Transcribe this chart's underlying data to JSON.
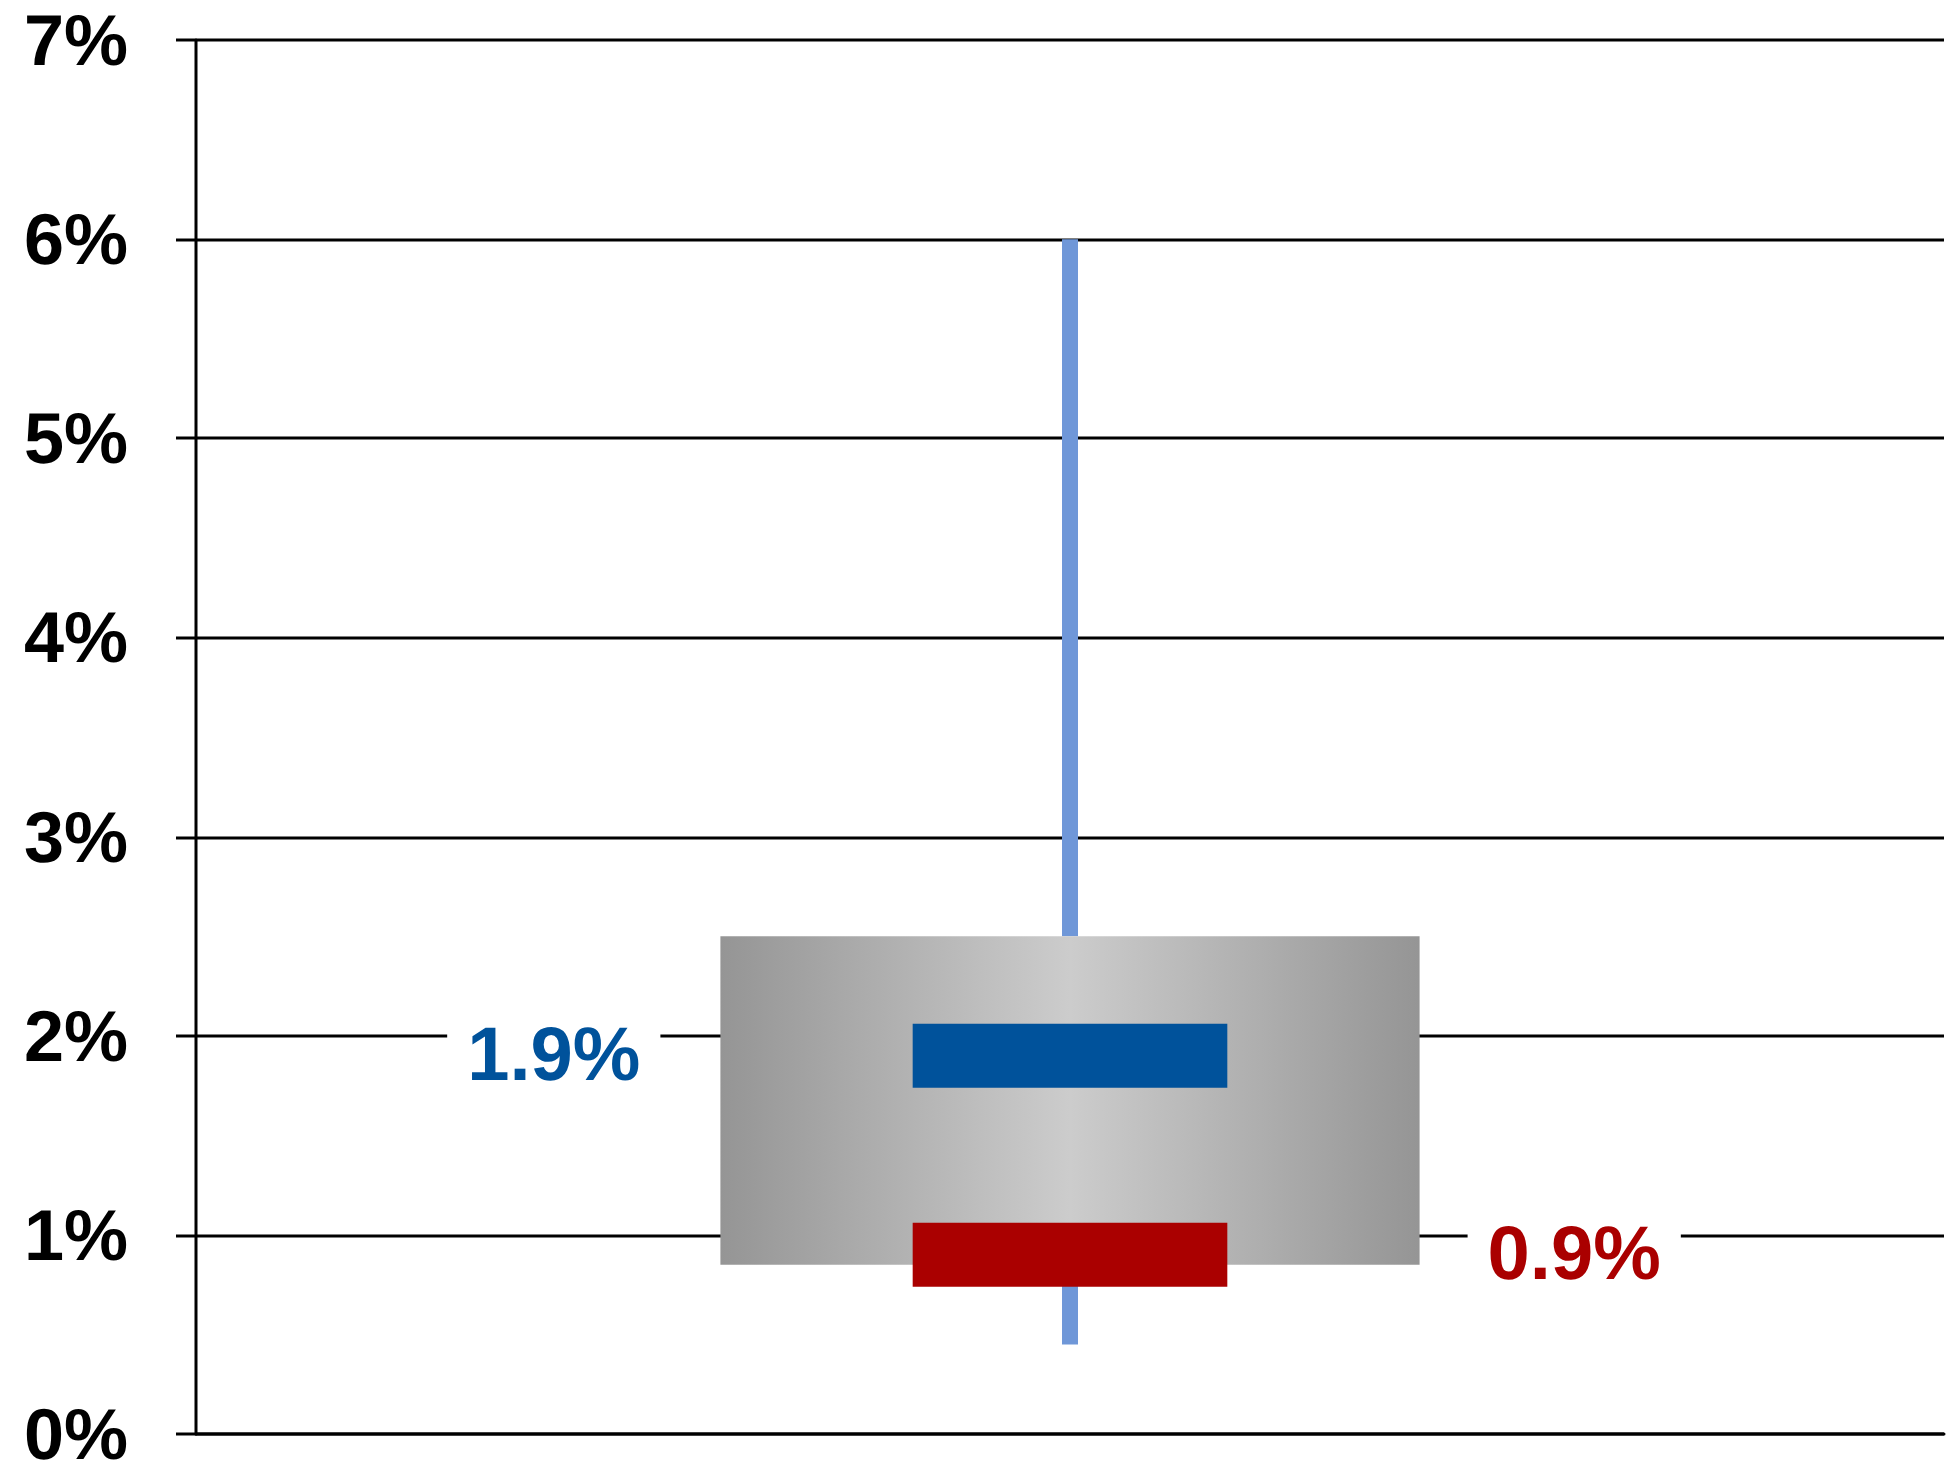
{
  "chart_data": {
    "type": "box",
    "categories": [
      null
    ],
    "series": [
      {
        "color": "#959595",
        "boxes": [
          {
            "low": 0.45,
            "q1": 0.85,
            "median": 0.9,
            "q3": 2.5,
            "high": 6,
            "mean": 1.9
          }
        ]
      }
    ],
    "ylim": [
      0,
      7
    ],
    "yticks": [
      {
        "value": 0,
        "label": "0%"
      },
      {
        "value": 1,
        "label": "1%"
      },
      {
        "value": 2,
        "label": "2%"
      },
      {
        "value": 3,
        "label": "3%"
      },
      {
        "value": 4,
        "label": "4%"
      },
      {
        "value": 5,
        "label": "5%"
      },
      {
        "value": 6,
        "label": "6%"
      },
      {
        "value": 7,
        "label": "7%"
      }
    ],
    "grid": "y",
    "tick_labels": "y",
    "annotations": [
      "1.9%",
      "0.9%"
    ]
  }
}
